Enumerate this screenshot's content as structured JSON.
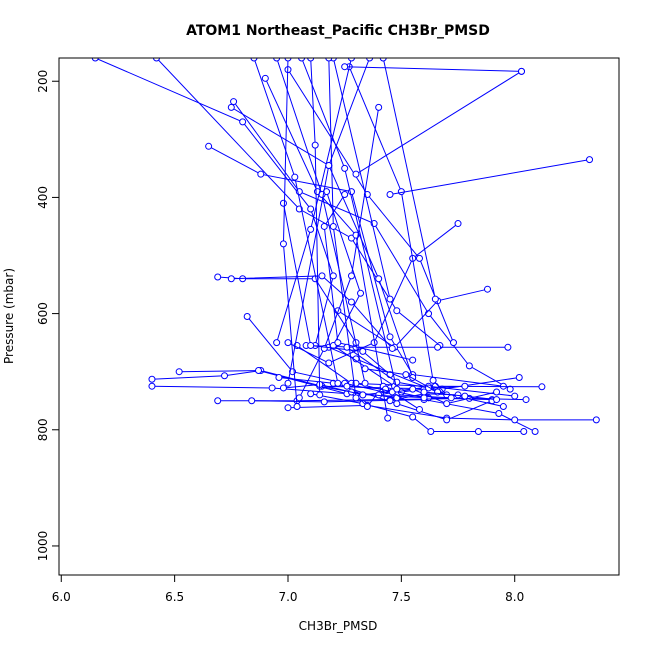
{
  "chart_data": {
    "type": "line",
    "title": "ATOM1 Northeast_Pacific CH3Br_PMSD",
    "xlabel": "CH3Br_PMSD",
    "ylabel": "Pressure (mbar)",
    "xlim": [
      5.99,
      8.46
    ],
    "ylim": [
      1050,
      160
    ],
    "y_inverted": true,
    "xticks": [
      6.0,
      6.5,
      7.0,
      7.5,
      8.0
    ],
    "xtick_labels": [
      "6.0",
      "6.5",
      "7.0",
      "7.5",
      "8.0"
    ],
    "yticks": [
      200,
      400,
      600,
      800,
      1000
    ],
    "ytick_labels": [
      "200",
      "400",
      "600",
      "800",
      "1000"
    ],
    "color": "#0000ff",
    "marker": "open-circle",
    "grid": false,
    "legend": "none",
    "series": [
      {
        "x": [
          6.15,
          6.8,
          7.1,
          7.2,
          7.12
        ],
        "y": [
          160,
          270,
          420,
          535,
          655
        ]
      },
      {
        "x": [
          6.42,
          7.05,
          7.28,
          7.48,
          7.67
        ],
        "y": [
          160,
          420,
          470,
          595,
          655
        ]
      },
      {
        "x": [
          6.76,
          7.05,
          7.38,
          7.62,
          7.8,
          7.98
        ],
        "y": [
          235,
          390,
          445,
          600,
          690,
          730
        ]
      },
      {
        "x": [
          6.65,
          6.88,
          7.28,
          7.45,
          7.55,
          7.95
        ],
        "y": [
          312,
          360,
          390,
          640,
          705,
          725
        ]
      },
      {
        "x": [
          6.4,
          6.72,
          6.88,
          7.15,
          7.45,
          7.68,
          8.02
        ],
        "y": [
          713,
          707,
          698,
          725,
          728,
          730,
          710
        ]
      },
      {
        "x": [
          6.4,
          6.93,
          7.33,
          7.65,
          8.12
        ],
        "y": [
          725,
          728,
          740,
          725,
          726
        ]
      },
      {
        "x": [
          6.52,
          6.87,
          7.26,
          7.62,
          7.9
        ],
        "y": [
          700,
          698,
          738,
          745,
          748
        ]
      },
      {
        "x": [
          6.69,
          7.04,
          7.45,
          7.8,
          8.05
        ],
        "y": [
          750,
          750,
          748,
          746,
          748
        ]
      },
      {
        "x": [
          6.84,
          7.16,
          7.6,
          7.93,
          8.09
        ],
        "y": [
          750,
          752,
          748,
          772,
          803
        ]
      },
      {
        "x": [
          7.0,
          7.35,
          7.7,
          8.0,
          8.36
        ],
        "y": [
          762,
          758,
          780,
          783,
          783
        ]
      },
      {
        "x": [
          7.1,
          7.33,
          7.55,
          7.63,
          7.84,
          8.04
        ],
        "y": [
          738,
          755,
          778,
          803,
          803,
          803
        ]
      },
      {
        "x": [
          6.96,
          7.2,
          7.48,
          7.7,
          7.9
        ],
        "y": [
          710,
          720,
          755,
          783,
          750
        ]
      },
      {
        "x": [
          7.04,
          7.28,
          7.62,
          8.0
        ],
        "y": [
          655,
          720,
          725,
          742
        ]
      },
      {
        "x": [
          7.08,
          7.3,
          7.66,
          7.97
        ],
        "y": [
          655,
          658,
          658,
          658
        ]
      },
      {
        "x": [
          7.18,
          7.3,
          7.66,
          7.95
        ],
        "y": [
          658,
          678,
          735,
          760
        ]
      },
      {
        "x": [
          7.22,
          7.47,
          7.66,
          7.88
        ],
        "y": [
          595,
          658,
          578,
          558
        ]
      },
      {
        "x": [
          7.0,
          7.18,
          7.38,
          7.55,
          7.75
        ],
        "y": [
          650,
          685,
          650,
          505,
          445
        ]
      },
      {
        "x": [
          6.69,
          6.8,
          7.12,
          7.3
        ],
        "y": [
          537,
          540,
          540,
          650
        ]
      },
      {
        "x": [
          6.75,
          7.15,
          7.28,
          7.46
        ],
        "y": [
          540,
          535,
          580,
          660
        ]
      },
      {
        "x": [
          6.9,
          7.13,
          7.3,
          7.44
        ],
        "y": [
          195,
          390,
          465,
          780
        ]
      },
      {
        "x": [
          7.0,
          7.35,
          7.58,
          7.73
        ],
        "y": [
          180,
          395,
          505,
          650
        ]
      },
      {
        "x": [
          6.75,
          7.18,
          7.4,
          7.55
        ],
        "y": [
          245,
          345,
          540,
          710
        ]
      },
      {
        "x": [
          7.27,
          7.5,
          7.64,
          7.7
        ],
        "y": [
          175,
          390,
          715,
          740
        ]
      },
      {
        "x": [
          7.4,
          7.28,
          7.16,
          7.05
        ],
        "y": [
          245,
          535,
          660,
          745
        ]
      },
      {
        "x": [
          7.17,
          7.32,
          7.2,
          7.47
        ],
        "y": [
          390,
          565,
          655,
          725
        ]
      },
      {
        "x": [
          6.98,
          7.1,
          7.33,
          7.45
        ],
        "y": [
          410,
          655,
          665,
          705
        ]
      },
      {
        "x": [
          7.25,
          7.16,
          7.22,
          7.55
        ],
        "y": [
          395,
          450,
          650,
          680
        ]
      },
      {
        "x": [
          6.82,
          7.02,
          7.25,
          7.48,
          7.72
        ],
        "y": [
          605,
          700,
          720,
          740,
          745
        ]
      },
      {
        "x": [
          7.3,
          7.35,
          7.42,
          7.5,
          7.6
        ],
        "y": [
          740,
          760,
          725,
          735,
          730
        ]
      },
      {
        "x": [
          7.26,
          7.48,
          7.62,
          7.78
        ],
        "y": [
          658,
          718,
          728,
          725
        ]
      },
      {
        "x": [
          7.45,
          7.6,
          7.75
        ],
        "y": [
          750,
          738,
          740
        ]
      },
      {
        "x": [
          7.4,
          7.55,
          7.7,
          7.92
        ],
        "y": [
          740,
          730,
          755,
          735
        ]
      },
      {
        "x": [
          7.34,
          7.52,
          7.66
        ],
        "y": [
          695,
          705,
          735
        ]
      },
      {
        "x": [
          7.26,
          7.43,
          7.6
        ],
        "y": [
          725,
          730,
          745
        ]
      },
      {
        "x": [
          7.14,
          7.28,
          7.48
        ],
        "y": [
          725,
          735,
          745
        ]
      },
      {
        "x": [
          6.98,
          7.14,
          7.33
        ],
        "y": [
          728,
          722,
          740
        ]
      },
      {
        "x": [
          7.6,
          7.78,
          7.92
        ],
        "y": [
          735,
          742,
          748
        ]
      },
      {
        "x": [
          7.3,
          7.46,
          7.58
        ],
        "y": [
          720,
          735,
          765
        ]
      },
      {
        "x": [
          7.25,
          8.03
        ],
        "y": [
          175,
          183
        ]
      },
      {
        "x": [
          8.33,
          7.45
        ],
        "y": [
          335,
          395
        ]
      },
      {
        "x": [
          8.03,
          7.3
        ],
        "y": [
          183,
          360
        ]
      },
      {
        "x": [
          7.42,
          7.65
        ],
        "y": [
          160,
          575
        ]
      },
      {
        "x": [
          7.2,
          7.45
        ],
        "y": [
          160,
          575
        ]
      },
      {
        "x": [
          6.95,
          7.15,
          7.34
        ],
        "y": [
          160,
          395,
          720
        ]
      },
      {
        "x": [
          6.85,
          7.03,
          7.22
        ],
        "y": [
          160,
          365,
          720
        ]
      },
      {
        "x": [
          7.06,
          7.25,
          7.48
        ],
        "y": [
          160,
          350,
          730
        ]
      },
      {
        "x": [
          7.28,
          7.1,
          6.95
        ],
        "y": [
          160,
          455,
          650
        ]
      },
      {
        "x": [
          7.36,
          7.18,
          7.0
        ],
        "y": [
          160,
          345,
          720
        ]
      },
      {
        "x": [
          7.18,
          7.2,
          7.3
        ],
        "y": [
          160,
          450,
          745
        ]
      },
      {
        "x": [
          7.0,
          6.98,
          7.04
        ],
        "y": [
          160,
          480,
          760
        ]
      },
      {
        "x": [
          7.1,
          7.12,
          7.14
        ],
        "y": [
          160,
          310,
          740
        ]
      }
    ]
  }
}
